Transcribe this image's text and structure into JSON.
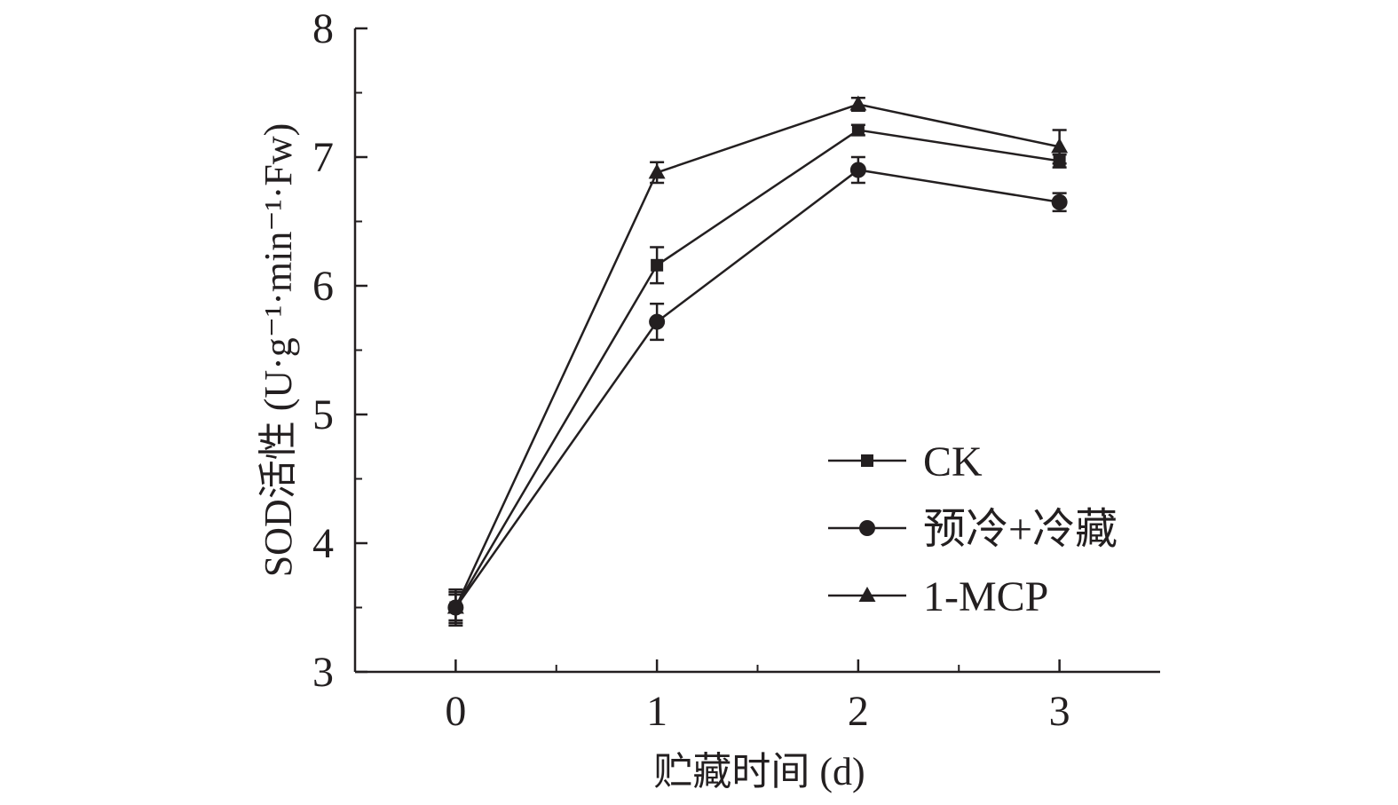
{
  "colors": {
    "ink": "#231f20",
    "background": "#ffffff"
  },
  "chart_data": {
    "type": "line",
    "title": "",
    "xlabel": "贮藏时间 (d)",
    "ylabel": "SOD活性 (U·g⁻¹·min⁻¹·Fw)",
    "xlim": [
      -0.5,
      3.5
    ],
    "ylim": [
      3,
      8
    ],
    "xticks": [
      0,
      1,
      2,
      3
    ],
    "xtick_labels": [
      "0",
      "1",
      "2",
      "3"
    ],
    "yticks": [
      3,
      4,
      5,
      6,
      7,
      8
    ],
    "ytick_labels": [
      "3",
      "4",
      "5",
      "6",
      "7",
      "8"
    ],
    "grid": false,
    "legend_position": "bottom-right",
    "x": [
      0,
      1,
      2,
      3
    ],
    "series": [
      {
        "name": "CK",
        "marker": "square",
        "values": [
          3.5,
          6.16,
          7.21,
          6.97
        ],
        "errors": [
          0.12,
          0.14,
          0.04,
          0.05
        ]
      },
      {
        "name": "预冷+冷藏",
        "marker": "circle",
        "values": [
          3.5,
          5.72,
          6.9,
          6.65
        ],
        "errors": [
          0.14,
          0.14,
          0.1,
          0.07
        ]
      },
      {
        "name": "1-MCP",
        "marker": "triangle",
        "values": [
          3.5,
          6.88,
          7.41,
          7.08
        ],
        "errors": [
          0.1,
          0.08,
          0.05,
          0.13
        ]
      }
    ]
  }
}
